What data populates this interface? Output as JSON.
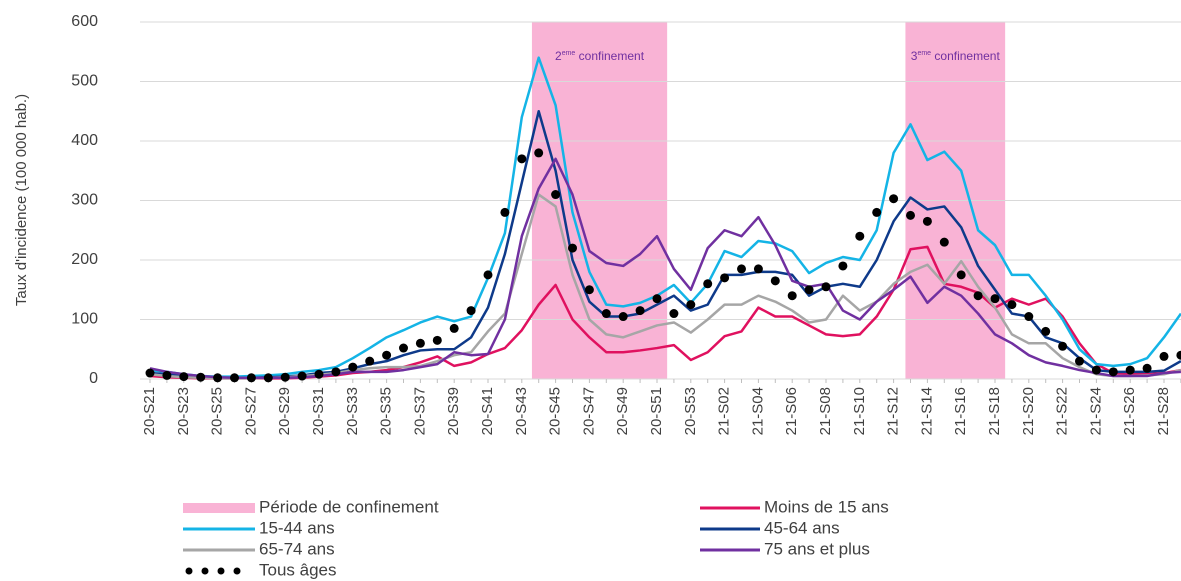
{
  "chart_data": {
    "type": "line",
    "ylabel": "Taux d'incidence (100 000 hab.)",
    "ylim": [
      0,
      600
    ],
    "yticks": [
      0,
      100,
      200,
      300,
      400,
      500,
      600
    ],
    "grid": true,
    "legend": "bottom",
    "categories": [
      "20-S21",
      null,
      "20-S23",
      null,
      "20-S25",
      null,
      "20-S27",
      null,
      "20-S29",
      null,
      "20-S31",
      null,
      "20-S33",
      null,
      "20-S35",
      null,
      "20-S37",
      null,
      "20-S39",
      null,
      "20-S41",
      null,
      "20-S43",
      null,
      "20-S45",
      null,
      "20-S47",
      null,
      "20-S49",
      null,
      "20-S51",
      null,
      "20-S53",
      null,
      "21-S02",
      null,
      "21-S04",
      null,
      "21-S06",
      null,
      "21-S08",
      null,
      "21-S10",
      null,
      "21-S12",
      null,
      "21-S14",
      null,
      "21-S16",
      null,
      "21-S18",
      null,
      "21-S20",
      null,
      "21-S22",
      null,
      "21-S24",
      null,
      "21-S26",
      null,
      "21-S28",
      null
    ],
    "periods": {
      "name": "Période de confinement",
      "color": "#f9b3d5",
      "bands": [
        {
          "x": [
            22.6,
            30.6
          ],
          "label": {
            "pre": "2",
            "sup": "eme",
            "post": " confinement"
          }
        },
        {
          "x": [
            44.7,
            50.6
          ],
          "label": {
            "pre": "3",
            "sup": "eme",
            "post": " confinement"
          }
        }
      ]
    },
    "series": [
      {
        "name": "Moins de 15 ans",
        "color": "#e0115f",
        "values": [
          5,
          3,
          2,
          1,
          1,
          1,
          1,
          1,
          1,
          2,
          4,
          6,
          10,
          12,
          15,
          20,
          28,
          38,
          22,
          28,
          42,
          52,
          82,
          125,
          158,
          100,
          70,
          45,
          45,
          48,
          52,
          57,
          32,
          45,
          72,
          80,
          120,
          105,
          105,
          90,
          75,
          72,
          75,
          105,
          150,
          218,
          222,
          160,
          155,
          145,
          120,
          135,
          125,
          135,
          105,
          60,
          25,
          10,
          8,
          8,
          10,
          15
        ]
      },
      {
        "name": "15-44 ans",
        "color": "#14b4e6",
        "values": [
          15,
          12,
          8,
          5,
          4,
          4,
          5,
          6,
          8,
          12,
          15,
          20,
          35,
          52,
          70,
          82,
          95,
          105,
          97,
          105,
          170,
          245,
          440,
          540,
          460,
          280,
          180,
          125,
          122,
          128,
          140,
          158,
          128,
          160,
          215,
          205,
          232,
          228,
          215,
          178,
          195,
          205,
          200,
          250,
          380,
          428,
          368,
          382,
          350,
          250,
          225,
          175,
          175,
          140,
          100,
          50,
          25,
          22,
          25,
          35,
          70,
          110
        ]
      },
      {
        "name": "45-64 ans",
        "color": "#0e3a8a",
        "values": [
          10,
          8,
          5,
          3,
          2,
          2,
          2,
          3,
          4,
          6,
          10,
          12,
          18,
          25,
          30,
          40,
          48,
          50,
          50,
          70,
          120,
          210,
          330,
          450,
          350,
          200,
          130,
          105,
          105,
          110,
          125,
          140,
          115,
          125,
          175,
          175,
          180,
          180,
          175,
          140,
          155,
          160,
          155,
          200,
          265,
          305,
          285,
          290,
          255,
          190,
          150,
          110,
          105,
          70,
          60,
          35,
          15,
          12,
          12,
          12,
          14,
          30
        ]
      },
      {
        "name": "65-74 ans",
        "color": "#a6a6a6",
        "values": [
          8,
          5,
          3,
          2,
          1,
          1,
          1,
          2,
          3,
          5,
          7,
          10,
          15,
          18,
          20,
          20,
          22,
          30,
          40,
          45,
          80,
          110,
          210,
          310,
          290,
          175,
          100,
          75,
          70,
          80,
          90,
          95,
          78,
          100,
          125,
          125,
          140,
          130,
          115,
          95,
          100,
          140,
          115,
          130,
          160,
          180,
          192,
          160,
          198,
          155,
          120,
          75,
          60,
          60,
          35,
          20,
          8,
          5,
          5,
          6,
          8,
          15
        ]
      },
      {
        "name": "75 ans et plus",
        "color": "#7030a0",
        "values": [
          18,
          12,
          8,
          5,
          3,
          2,
          2,
          2,
          2,
          3,
          5,
          8,
          12,
          12,
          12,
          15,
          20,
          25,
          45,
          40,
          42,
          100,
          240,
          320,
          370,
          310,
          215,
          195,
          190,
          210,
          240,
          185,
          150,
          220,
          250,
          240,
          272,
          225,
          165,
          155,
          160,
          115,
          100,
          130,
          150,
          172,
          128,
          155,
          140,
          110,
          75,
          60,
          40,
          28,
          22,
          15,
          10,
          5,
          5,
          5,
          10,
          12
        ]
      },
      {
        "name": "Tous âges",
        "color": "#000000",
        "style": "dots",
        "values": [
          10,
          6,
          4,
          3,
          2,
          2,
          2,
          2,
          3,
          5,
          8,
          12,
          20,
          30,
          40,
          52,
          60,
          65,
          85,
          115,
          175,
          280,
          370,
          380,
          310,
          220,
          150,
          110,
          105,
          115,
          135,
          110,
          125,
          160,
          170,
          185,
          185,
          165,
          140,
          150,
          155,
          190,
          240,
          280,
          303,
          275,
          265,
          230,
          175,
          140,
          135,
          125,
          105,
          80,
          55,
          30,
          15,
          12,
          15,
          18,
          38,
          40
        ]
      }
    ]
  }
}
